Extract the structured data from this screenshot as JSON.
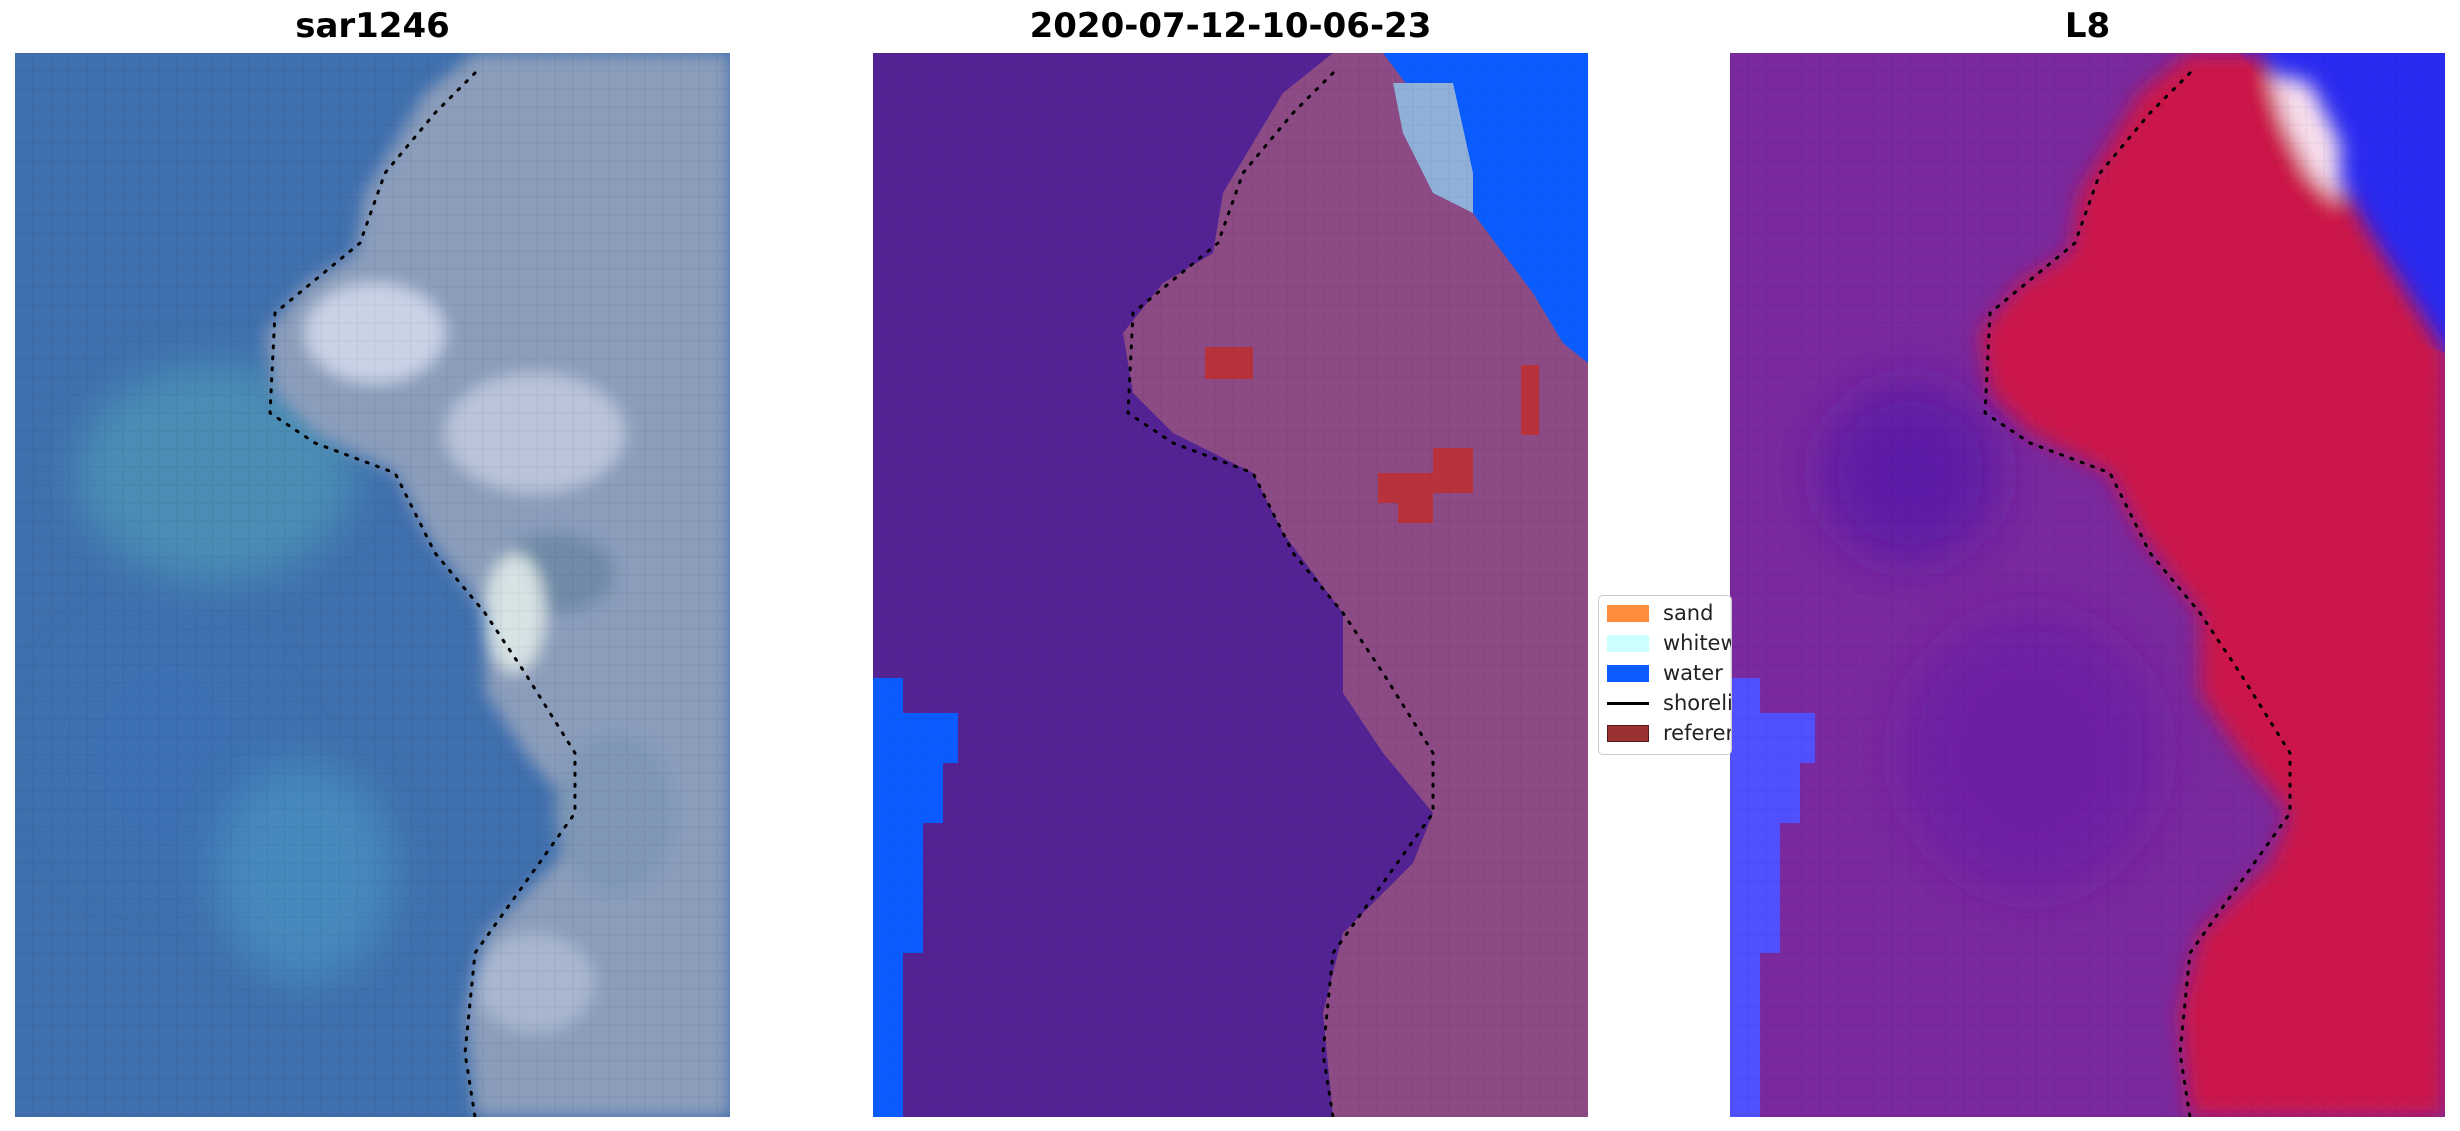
{
  "panels": [
    {
      "title": "sar1246",
      "kind": "rgb"
    },
    {
      "title": "2020-07-12-10-06-23",
      "kind": "classified"
    },
    {
      "title": "L8",
      "kind": "ndwi"
    }
  ],
  "legend": {
    "items": [
      {
        "label": "sand",
        "color": "#ff8c3a",
        "type": "patch"
      },
      {
        "label": "whitewater",
        "color": "#ccffff",
        "type": "patch"
      },
      {
        "label": "water",
        "color": "#0a5cff",
        "type": "patch"
      },
      {
        "label": "shoreline",
        "color": "#000000",
        "type": "line"
      },
      {
        "label": "reference",
        "color": "#9b3030",
        "type": "patch"
      }
    ]
  },
  "colors": {
    "sea_rgb": "#3f6fae",
    "land_rgb": "#8b9dbb",
    "classified_background": "#532394",
    "classified_land": "#8c4b84",
    "classified_water": "#0a5cff",
    "classified_reference": "#b8323c",
    "ndwi_sea": "#7a2a9e",
    "ndwi_land": "#cc1448",
    "ndwi_water": "#5050ff",
    "shoreline": "#000000"
  }
}
